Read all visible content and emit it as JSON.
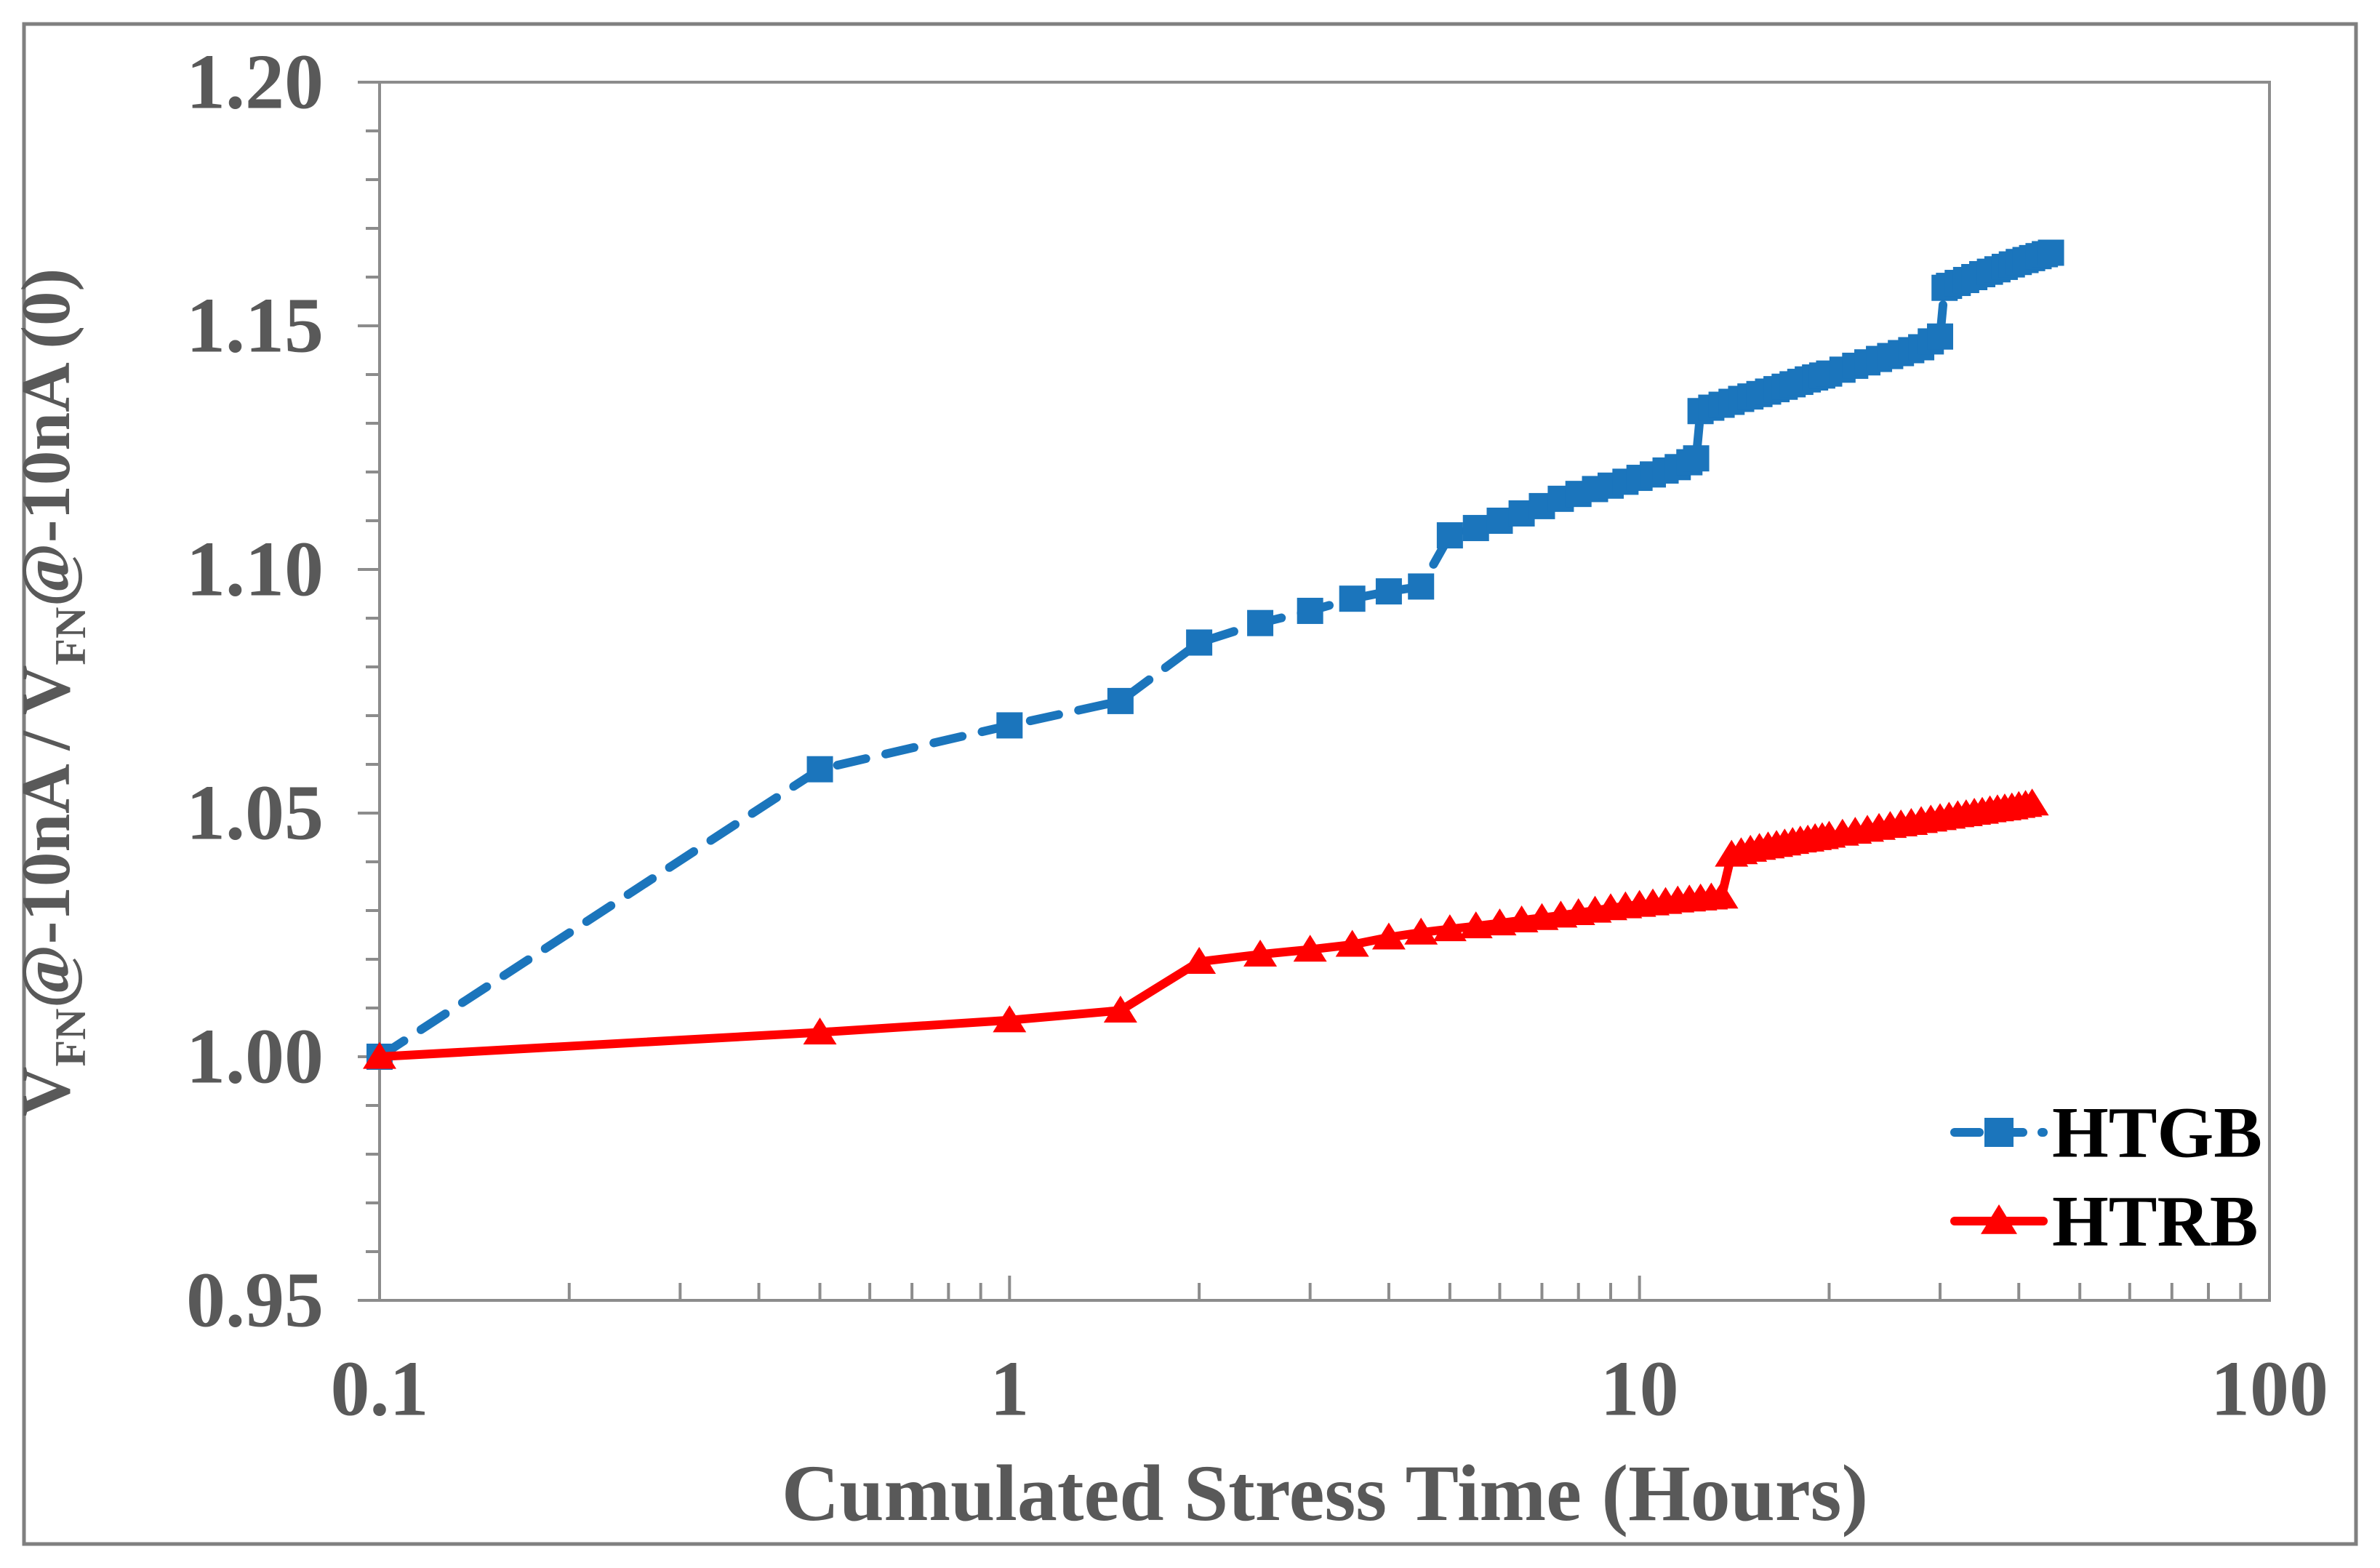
{
  "figure": {
    "border_color": "#7f7f7f",
    "background": "#ffffff"
  },
  "colors": {
    "axis_line": "#8c8c8c",
    "axis_text": "#595959",
    "legend_text": "#000000",
    "htgb_blue": "#1b75bc",
    "htrb_red": "#ff0000"
  },
  "chart_data": {
    "type": "line",
    "title": "",
    "xlabel": "Cumulated Stress Time (Hours)",
    "ylabel": "VFN@-10nA / VFN@-10nA (0)",
    "ylabel_parts": [
      {
        "t": "V",
        "sub": false
      },
      {
        "t": "FN",
        "sub": true
      },
      {
        "t": "@-10nA / V",
        "sub": false
      },
      {
        "t": "FN",
        "sub": true
      },
      {
        "t": "@-10nA (0)",
        "sub": false
      }
    ],
    "x_scale": "log",
    "xlim": [
      0.1,
      100
    ],
    "ylim": [
      0.95,
      1.2
    ],
    "grid": false,
    "x_tick_labels": [
      "0.1",
      "1",
      "10",
      "100"
    ],
    "x_major_ticks": [
      0.1,
      1,
      10,
      100
    ],
    "y_tick_labels": [
      "0.95",
      "1.00",
      "1.05",
      "1.10",
      "1.15",
      "1.20"
    ],
    "y_major_ticks": [
      0.95,
      1.0,
      1.05,
      1.1,
      1.15,
      1.2
    ],
    "y_minor_step": 0.01,
    "legend_position": "inside-right",
    "series": [
      {
        "name": "HTGB",
        "color": "#1b75bc",
        "line_style": "dashed",
        "marker": "square",
        "points": [
          [
            0.1,
            1.0
          ],
          [
            0.5,
            1.059
          ],
          [
            1,
            1.068
          ],
          [
            1.5,
            1.073
          ],
          [
            2,
            1.085
          ],
          [
            2.5,
            1.089
          ],
          [
            3,
            1.0915
          ],
          [
            3.5,
            1.094
          ],
          [
            4,
            1.0955
          ],
          [
            4.5,
            1.0965
          ],
          [
            5,
            1.107
          ],
          [
            5.5,
            1.1085
          ],
          [
            6,
            1.11
          ],
          [
            6.5,
            1.1115
          ],
          [
            7,
            1.113
          ],
          [
            7.5,
            1.1145
          ],
          [
            8,
            1.1155
          ],
          [
            8.5,
            1.1165
          ],
          [
            9,
            1.1172
          ],
          [
            9.5,
            1.118
          ],
          [
            10,
            1.1188
          ],
          [
            10.5,
            1.1195
          ],
          [
            11,
            1.1203
          ],
          [
            11.5,
            1.121
          ],
          [
            12,
            1.122
          ],
          [
            12.3,
            1.1228
          ],
          [
            12.5,
            1.1325
          ],
          [
            13,
            1.1332
          ],
          [
            13.5,
            1.1338
          ],
          [
            14,
            1.1344
          ],
          [
            14.5,
            1.135
          ],
          [
            15,
            1.1355
          ],
          [
            15.5,
            1.136
          ],
          [
            16,
            1.1365
          ],
          [
            16.5,
            1.137
          ],
          [
            17,
            1.1375
          ],
          [
            17.5,
            1.138
          ],
          [
            18,
            1.1385
          ],
          [
            18.5,
            1.139
          ],
          [
            19,
            1.1394
          ],
          [
            19.5,
            1.1398
          ],
          [
            20,
            1.1402
          ],
          [
            21,
            1.141
          ],
          [
            22,
            1.1418
          ],
          [
            23,
            1.1425
          ],
          [
            24,
            1.1432
          ],
          [
            25,
            1.1438
          ],
          [
            26,
            1.1444
          ],
          [
            27,
            1.145
          ],
          [
            28,
            1.1456
          ],
          [
            29,
            1.1468
          ],
          [
            30,
            1.1478
          ],
          [
            30.5,
            1.1578
          ],
          [
            31,
            1.1582
          ],
          [
            32,
            1.1588
          ],
          [
            33,
            1.1594
          ],
          [
            34,
            1.16
          ],
          [
            35,
            1.1606
          ],
          [
            36,
            1.1611
          ],
          [
            37,
            1.1616
          ],
          [
            38,
            1.1621
          ],
          [
            39,
            1.1626
          ],
          [
            40,
            1.1631
          ],
          [
            41,
            1.1635
          ],
          [
            42,
            1.1639
          ],
          [
            43,
            1.1643
          ],
          [
            44,
            1.1647
          ],
          [
            45,
            1.165
          ]
        ]
      },
      {
        "name": "HTRB",
        "color": "#ff0000",
        "line_style": "solid",
        "marker": "triangle",
        "points": [
          [
            0.1,
            1.0
          ],
          [
            0.5,
            1.005
          ],
          [
            1,
            1.0075
          ],
          [
            1.5,
            1.0095
          ],
          [
            2,
            1.0195
          ],
          [
            2.5,
            1.021
          ],
          [
            3,
            1.022
          ],
          [
            3.5,
            1.023
          ],
          [
            4,
            1.0245
          ],
          [
            4.5,
            1.0255
          ],
          [
            5,
            1.0262
          ],
          [
            5.5,
            1.0268
          ],
          [
            6,
            1.0274
          ],
          [
            6.5,
            1.028
          ],
          [
            7,
            1.0285
          ],
          [
            7.5,
            1.029
          ],
          [
            8,
            1.0295
          ],
          [
            8.5,
            1.03
          ],
          [
            9,
            1.0305
          ],
          [
            9.5,
            1.0309
          ],
          [
            10,
            1.0312
          ],
          [
            10.5,
            1.0315
          ],
          [
            11,
            1.0318
          ],
          [
            11.5,
            1.0321
          ],
          [
            12,
            1.0323
          ],
          [
            12.5,
            1.0325
          ],
          [
            13,
            1.0327
          ],
          [
            13.5,
            1.0329
          ],
          [
            14,
            1.0415
          ],
          [
            14.5,
            1.042
          ],
          [
            15,
            1.0425
          ],
          [
            15.5,
            1.0429
          ],
          [
            16,
            1.0432
          ],
          [
            16.5,
            1.0435
          ],
          [
            17,
            1.0438
          ],
          [
            17.5,
            1.0441
          ],
          [
            18,
            1.0444
          ],
          [
            18.5,
            1.0446
          ],
          [
            19,
            1.0449
          ],
          [
            19.5,
            1.0451
          ],
          [
            20,
            1.0454
          ],
          [
            21,
            1.0458
          ],
          [
            22,
            1.0462
          ],
          [
            23,
            1.0466
          ],
          [
            24,
            1.047
          ],
          [
            25,
            1.0474
          ],
          [
            26,
            1.0477
          ],
          [
            27,
            1.048
          ],
          [
            28,
            1.0484
          ],
          [
            29,
            1.0487
          ],
          [
            30,
            1.049
          ],
          [
            31,
            1.0493
          ],
          [
            32,
            1.0496
          ],
          [
            33,
            1.0498
          ],
          [
            34,
            1.0501
          ],
          [
            35,
            1.0503
          ],
          [
            36,
            1.0506
          ],
          [
            37,
            1.0508
          ],
          [
            38,
            1.051
          ],
          [
            39,
            1.0512
          ],
          [
            40,
            1.0515
          ],
          [
            41,
            1.0517
          ],
          [
            42,
            1.052
          ]
        ]
      }
    ]
  }
}
